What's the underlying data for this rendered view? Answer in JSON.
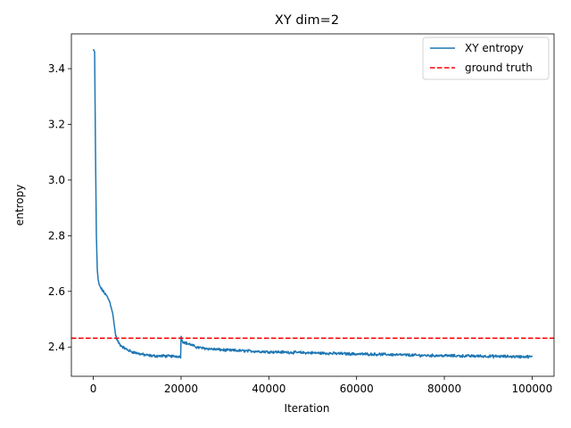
{
  "chart_data": {
    "type": "line",
    "title": "XY dim=2",
    "xlabel": "Iteration",
    "ylabel": "entropy",
    "xlim": [
      -5000,
      105000
    ],
    "ylim": [
      2.295,
      3.525
    ],
    "xticks": [
      0,
      20000,
      40000,
      60000,
      80000,
      100000
    ],
    "xtick_labels": [
      "0",
      "20000",
      "40000",
      "60000",
      "80000",
      "100000"
    ],
    "yticks": [
      2.4,
      2.6,
      2.8,
      3.0,
      3.2,
      3.4
    ],
    "ytick_labels": [
      "2.4",
      "2.6",
      "2.8",
      "3.0",
      "3.2",
      "3.4"
    ],
    "grid": false,
    "legend_position": "upper right",
    "series": [
      {
        "name": "XY entropy",
        "color": "#1f77b4",
        "style": "solid",
        "noise_amplitude": 0.004,
        "x": [
          0,
          300,
          500,
          700,
          900,
          1100,
          1400,
          1800,
          2500,
          3200,
          3800,
          4300,
          4700,
          5000,
          5300,
          5600,
          6000,
          6500,
          7000,
          8000,
          9000,
          10000,
          11000,
          12000,
          13000,
          14000,
          15000,
          16000,
          17000,
          18000,
          19000,
          19900,
          20000,
          20100,
          20400,
          21000,
          22000,
          23000,
          24000,
          25000,
          27000,
          30000,
          35000,
          40000,
          45000,
          50000,
          55000,
          60000,
          65000,
          70000,
          75000,
          80000,
          85000,
          90000,
          95000,
          100000
        ],
        "y": [
          3.47,
          3.46,
          3.1,
          2.8,
          2.68,
          2.64,
          2.62,
          2.61,
          2.595,
          2.58,
          2.56,
          2.53,
          2.49,
          2.45,
          2.43,
          2.42,
          2.41,
          2.403,
          2.397,
          2.388,
          2.382,
          2.378,
          2.374,
          2.371,
          2.369,
          2.368,
          2.368,
          2.368,
          2.367,
          2.367,
          2.367,
          2.366,
          2.44,
          2.43,
          2.42,
          2.415,
          2.41,
          2.403,
          2.398,
          2.396,
          2.393,
          2.389,
          2.386,
          2.383,
          2.381,
          2.379,
          2.377,
          2.375,
          2.374,
          2.372,
          2.37,
          2.369,
          2.368,
          2.367,
          2.366,
          2.365
        ]
      },
      {
        "name": "ground truth",
        "color": "#ff0000",
        "style": "dashed",
        "constant": 2.432
      }
    ]
  }
}
